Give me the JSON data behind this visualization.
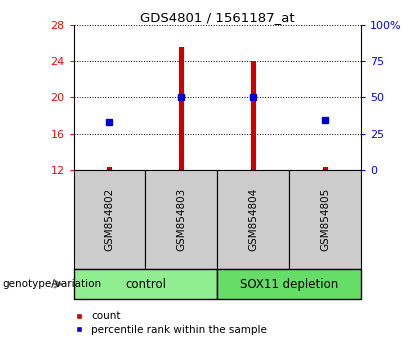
{
  "title": "GDS4801 / 1561187_at",
  "samples": [
    "GSM854802",
    "GSM854803",
    "GSM854804",
    "GSM854805"
  ],
  "counts": [
    12.3,
    25.5,
    24.0,
    12.3
  ],
  "percentiles": [
    17.3,
    20.0,
    20.0,
    17.5
  ],
  "ylim_left": [
    12,
    28
  ],
  "ylim_right": [
    0,
    100
  ],
  "yticks_left": [
    12,
    16,
    20,
    24,
    28
  ],
  "yticks_right": [
    0,
    25,
    50,
    75,
    100
  ],
  "ytick_labels_right": [
    "0",
    "25",
    "50",
    "75",
    "100%"
  ],
  "bar_color": "#cc0000",
  "dot_color": "#0000cc",
  "groups": [
    {
      "label": "control",
      "samples": [
        0,
        1
      ],
      "color": "#90ee90"
    },
    {
      "label": "SOX11 depletion",
      "samples": [
        2,
        3
      ],
      "color": "#66dd66"
    }
  ],
  "group_label": "genotype/variation",
  "legend_count": "count",
  "legend_pct": "percentile rank within the sample",
  "sample_box_color": "#cccccc",
  "bar_width": 0.07
}
